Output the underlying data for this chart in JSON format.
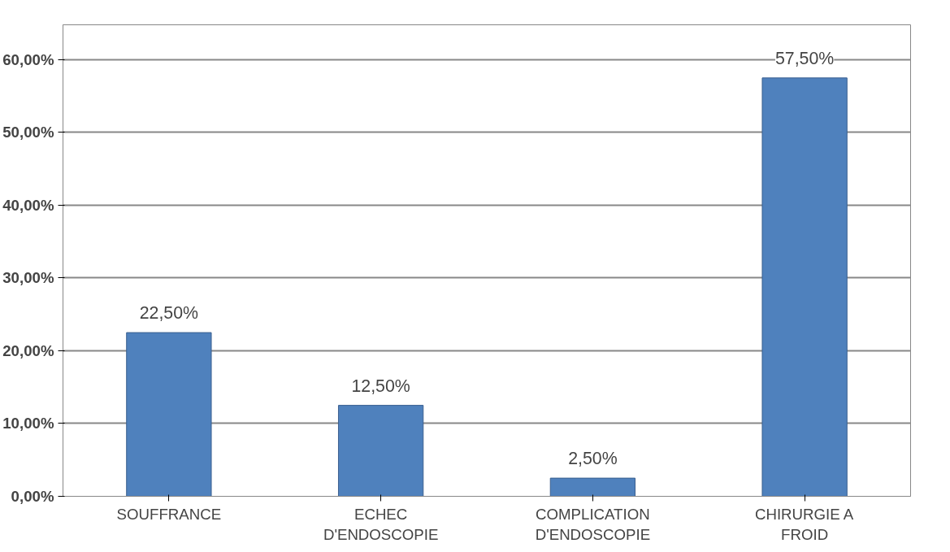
{
  "chart_data": {
    "type": "bar",
    "categories": [
      "SOUFFRANCE",
      "ECHEC\nD'ENDOSCOPIE",
      "COMPLICATION\nD'ENDOSCOPIE",
      "CHIRURGIE A\nFROID"
    ],
    "values": [
      22.5,
      12.5,
      2.5,
      57.5
    ],
    "value_labels": [
      "22,50%",
      "12,50%",
      "2,50%",
      "57,50%"
    ],
    "color": "#4f81bd",
    "ylim": [
      0,
      60
    ],
    "yticks": [
      {
        "value": 0,
        "label": "0,00%"
      },
      {
        "value": 10,
        "label": "10,00%"
      },
      {
        "value": 20,
        "label": "20,00%"
      },
      {
        "value": 30,
        "label": "30,00%"
      },
      {
        "value": 40,
        "label": "40,00%"
      },
      {
        "value": 50,
        "label": "50,00%"
      },
      {
        "value": 60,
        "label": "60,00%"
      }
    ],
    "grid": "y"
  }
}
